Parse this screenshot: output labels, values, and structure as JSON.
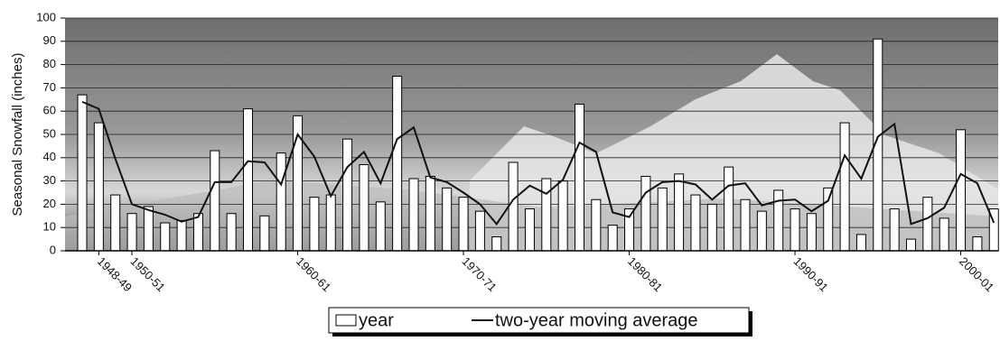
{
  "chart_data": {
    "type": "bar",
    "y_label": "Seasonal Snowfall (inches)",
    "categories": [
      null,
      "1948-49",
      null,
      "1950-51",
      null,
      null,
      null,
      null,
      null,
      null,
      null,
      null,
      null,
      "1960-61",
      null,
      null,
      null,
      null,
      null,
      null,
      null,
      null,
      null,
      "1970-71",
      null,
      null,
      null,
      null,
      null,
      null,
      null,
      null,
      null,
      "1980-81",
      null,
      null,
      null,
      null,
      null,
      null,
      null,
      null,
      null,
      "1990-91",
      null,
      null,
      null,
      null,
      null,
      null,
      null,
      null,
      null,
      "2000-01",
      null,
      null
    ],
    "series": [
      {
        "name": "year",
        "type": "bar",
        "color": "#ffffff",
        "values": [
          67,
          55,
          24,
          16,
          19,
          12,
          13,
          16,
          43,
          16,
          61,
          15,
          42,
          58,
          23,
          24,
          48,
          37,
          21,
          75,
          31,
          32,
          27,
          23,
          17,
          6,
          38,
          18,
          31,
          30,
          63,
          22,
          11,
          18,
          32,
          27,
          33,
          24,
          20,
          36,
          22,
          17,
          26,
          18,
          16,
          27,
          55,
          7,
          91,
          18,
          5,
          23,
          14,
          52,
          6,
          18
        ]
      },
      {
        "name": "two-year moving average",
        "type": "line",
        "color": "#111111",
        "values": [
          64,
          61,
          39.5,
          20,
          17.5,
          15.5,
          12.5,
          14.5,
          29.5,
          29.5,
          38.5,
          38,
          28.5,
          50,
          40.5,
          23.5,
          36,
          42.5,
          29,
          48,
          53,
          31.5,
          29.5,
          25,
          20,
          11.5,
          22,
          28,
          24.5,
          30.5,
          46.5,
          42.5,
          16.5,
          14.5,
          25,
          29.5,
          30,
          28.5,
          22,
          28,
          29,
          19.5,
          21.5,
          22,
          17,
          21.5,
          41,
          31,
          49,
          54.5,
          11.5,
          14,
          18.5,
          33,
          29,
          12
        ]
      }
    ],
    "ylim": [
      0,
      100
    ],
    "yticks": [
      0,
      10,
      20,
      30,
      40,
      50,
      60,
      70,
      80,
      90,
      100
    ],
    "grid": true,
    "legend": "bottom"
  }
}
